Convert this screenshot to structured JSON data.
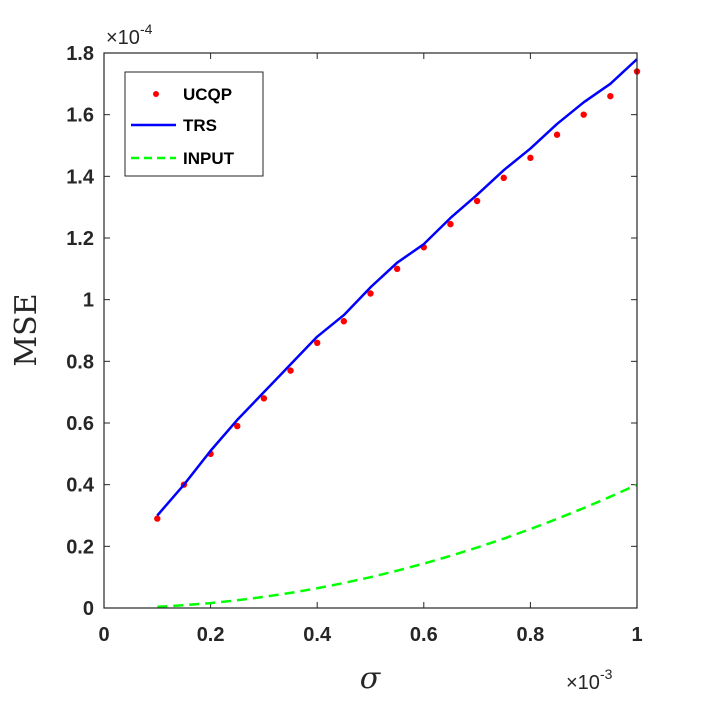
{
  "chart_data": {
    "type": "line",
    "title": "",
    "xlabel": "σ",
    "ylabel": "MSE",
    "x_multiplier_label": "×10",
    "x_multiplier_exp": "-3",
    "y_multiplier_label": "×10",
    "y_multiplier_exp": "-4",
    "xlim": [
      0,
      1
    ],
    "ylim": [
      0,
      1.8
    ],
    "xticks": [
      "0",
      "0.2",
      "0.4",
      "0.6",
      "0.8",
      "1"
    ],
    "yticks": [
      "0",
      "0.2",
      "0.4",
      "0.6",
      "0.8",
      "1",
      "1.2",
      "1.4",
      "1.6",
      "1.8"
    ],
    "grid": false,
    "legend_position": "top-left",
    "x": [
      0.1,
      0.15,
      0.2,
      0.25,
      0.3,
      0.35,
      0.4,
      0.45,
      0.5,
      0.55,
      0.6,
      0.65,
      0.7,
      0.75,
      0.8,
      0.85,
      0.9,
      0.95,
      1.0
    ],
    "series": [
      {
        "name": "UCQP",
        "style": "dots",
        "color": "#ff0000",
        "values": [
          0.29,
          0.4,
          0.5,
          0.59,
          0.68,
          0.77,
          0.86,
          0.93,
          1.02,
          1.1,
          1.17,
          1.245,
          1.32,
          1.395,
          1.46,
          1.535,
          1.6,
          1.66,
          1.74
        ]
      },
      {
        "name": "TRS",
        "style": "solid",
        "color": "#0000ff",
        "values": [
          0.3,
          0.4,
          0.51,
          0.61,
          0.7,
          0.79,
          0.88,
          0.95,
          1.04,
          1.12,
          1.18,
          1.265,
          1.34,
          1.42,
          1.49,
          1.57,
          1.64,
          1.7,
          1.78
        ]
      },
      {
        "name": "INPUT",
        "style": "dashed",
        "color": "#00ff00",
        "values": [
          0.004,
          0.009,
          0.016,
          0.025,
          0.036,
          0.049,
          0.064,
          0.081,
          0.1,
          0.121,
          0.144,
          0.169,
          0.196,
          0.225,
          0.256,
          0.289,
          0.324,
          0.361,
          0.4
        ]
      }
    ]
  }
}
